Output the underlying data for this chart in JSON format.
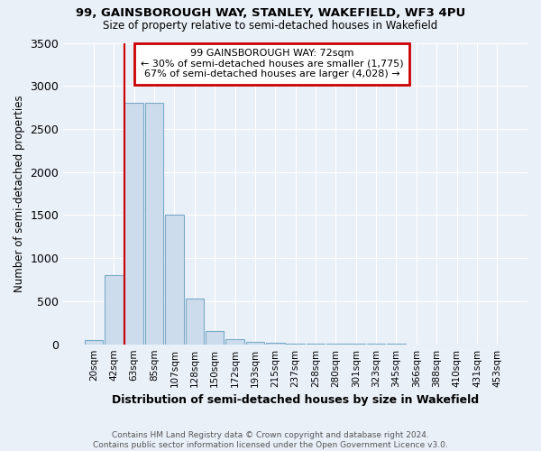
{
  "title1": "99, GAINSBOROUGH WAY, STANLEY, WAKEFIELD, WF3 4PU",
  "title2": "Size of property relative to semi-detached houses in Wakefield",
  "xlabel": "Distribution of semi-detached houses by size in Wakefield",
  "ylabel": "Number of semi-detached properties",
  "categories": [
    "20sqm",
    "42sqm",
    "63sqm",
    "85sqm",
    "107sqm",
    "128sqm",
    "150sqm",
    "172sqm",
    "193sqm",
    "215sqm",
    "237sqm",
    "258sqm",
    "280sqm",
    "301sqm",
    "323sqm",
    "345sqm",
    "366sqm",
    "388sqm",
    "410sqm",
    "431sqm",
    "453sqm"
  ],
  "values": [
    50,
    800,
    2800,
    2800,
    1500,
    530,
    150,
    60,
    30,
    20,
    10,
    5,
    5,
    2,
    2,
    2,
    1,
    1,
    1,
    1,
    0
  ],
  "bar_color": "#ccdcec",
  "bar_edge_color": "#7aaac8",
  "annotation_text": "99 GAINSBOROUGH WAY: 72sqm\n← 30% of semi-detached houses are smaller (1,775)\n67% of semi-detached houses are larger (4,028) →",
  "annotation_box_color": "#ffffff",
  "annotation_box_edge": "#cc0000",
  "property_line_color": "#cc0000",
  "ylim": [
    0,
    3500
  ],
  "background_color": "#eaf0f8",
  "plot_bg_color": "#eaf0f8",
  "grid_color": "#ffffff",
  "footnote": "Contains HM Land Registry data © Crown copyright and database right 2024.\nContains public sector information licensed under the Open Government Licence v3.0."
}
